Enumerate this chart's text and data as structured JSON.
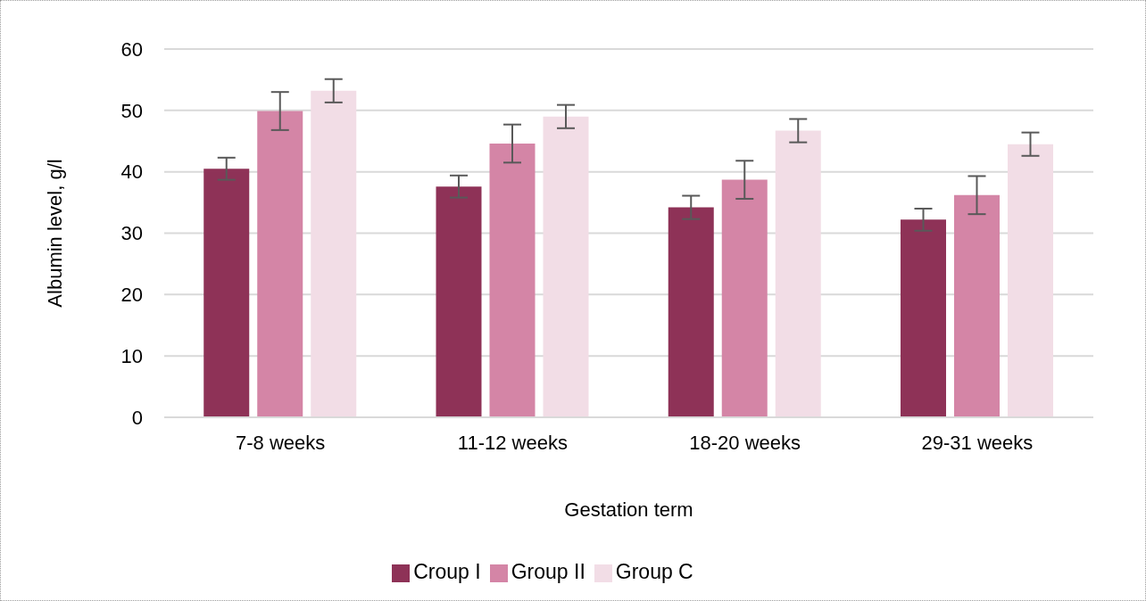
{
  "chart_data": {
    "type": "bar",
    "xlabel": "Gestation term",
    "ylabel": "Albumin level, g/l",
    "categories": [
      "7-8 weeks",
      "11-12 weeks",
      "18-20 weeks",
      "29-31 weeks"
    ],
    "series": [
      {
        "name": "Croup I",
        "color": "#8e3257",
        "values": [
          40.5,
          37.6,
          34.2,
          32.2
        ],
        "errors": [
          1.8,
          1.8,
          1.9,
          1.8
        ]
      },
      {
        "name": "Group II",
        "color": "#d485a6",
        "values": [
          49.9,
          44.6,
          38.7,
          36.2
        ],
        "errors": [
          3.1,
          3.1,
          3.1,
          3.1
        ]
      },
      {
        "name": "Group C",
        "color": "#f2dde6",
        "values": [
          53.2,
          49.0,
          46.7,
          44.5
        ],
        "errors": [
          1.9,
          1.9,
          1.9,
          1.9
        ]
      }
    ],
    "ylim": [
      0,
      60
    ],
    "yticks": [
      0,
      10,
      20,
      30,
      40,
      50,
      60
    ],
    "grid": "y",
    "legend": "bottom"
  }
}
